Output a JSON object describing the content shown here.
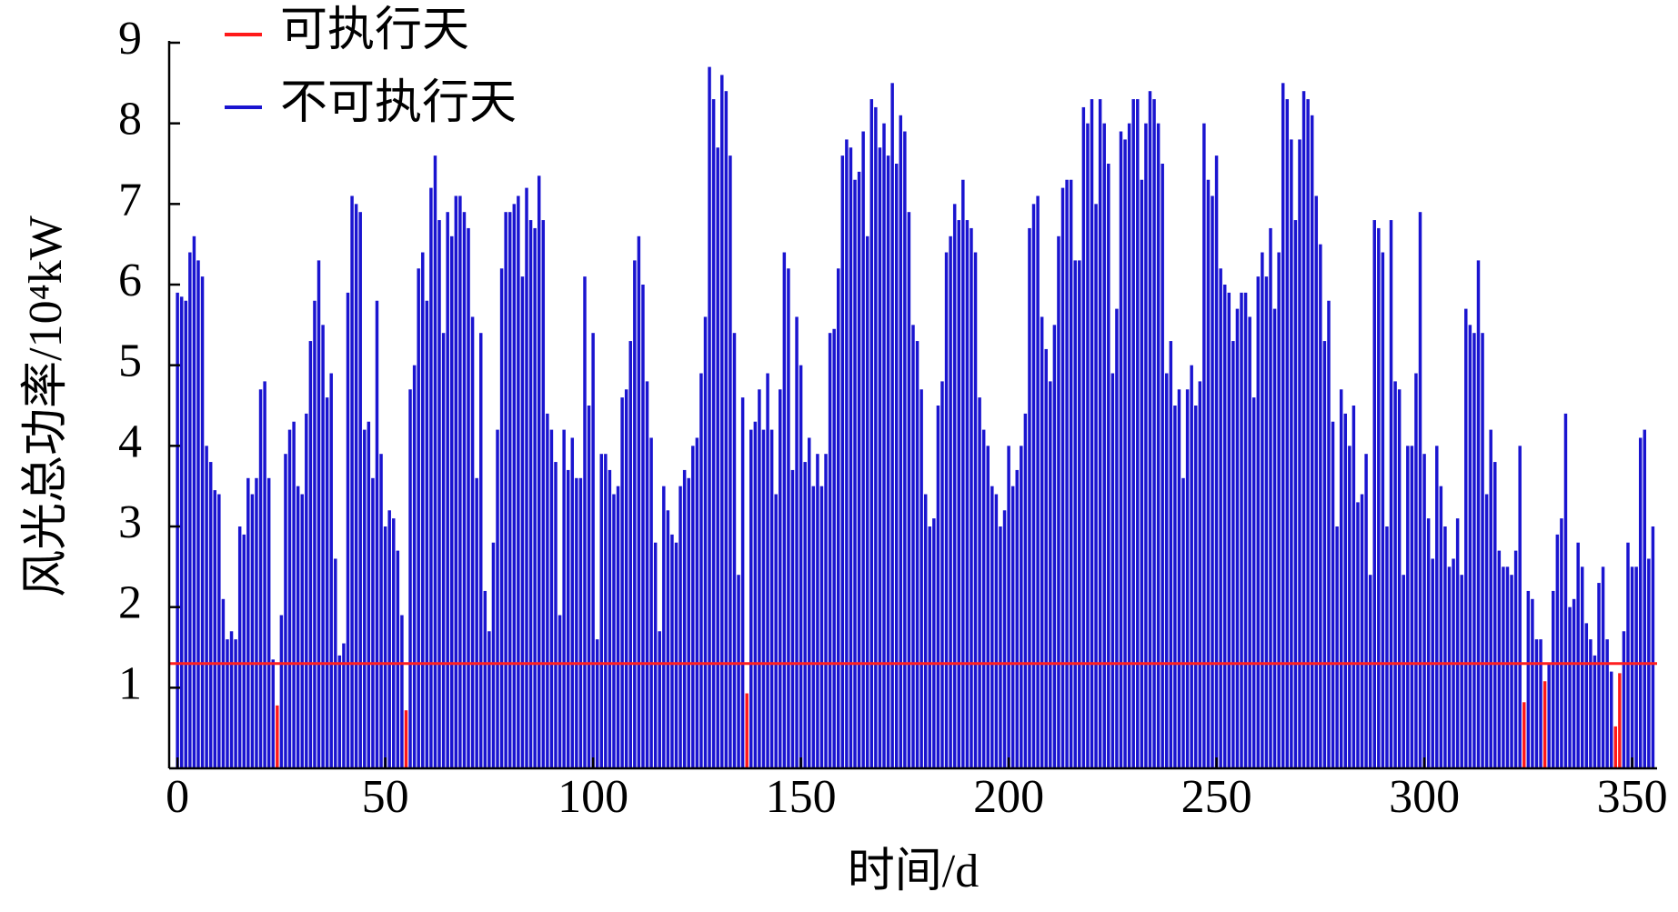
{
  "chart_data": {
    "type": "bar",
    "x_label": "时间/d",
    "y_label": "风光总功率/10⁴kW",
    "xlim": [
      -2,
      356
    ],
    "xticks": [
      0,
      50,
      100,
      150,
      200,
      250,
      300,
      350
    ],
    "ylim": [
      0,
      9
    ],
    "yticks": [
      1,
      2,
      3,
      4,
      5,
      6,
      7,
      8,
      9
    ],
    "threshold": 1.3,
    "threshold_color": "#ff2020",
    "legend": "upper left",
    "series": [
      {
        "name": "可执行天",
        "color": "#ff1a1a",
        "x": [
          24,
          55,
          137,
          324,
          329,
          346,
          347
        ],
        "values": [
          0.78,
          0.72,
          0.93,
          0.82,
          1.08,
          0.52,
          1.18
        ]
      },
      {
        "name": "不可执行天",
        "color": "#1a14d0",
        "x": [
          0,
          1,
          2,
          3,
          4,
          5,
          6,
          7,
          8,
          9,
          10,
          11,
          12,
          13,
          14,
          15,
          16,
          17,
          18,
          19,
          20,
          21,
          22,
          23,
          25,
          26,
          27,
          28,
          29,
          30,
          31,
          32,
          33,
          34,
          35,
          36,
          37,
          38,
          39,
          40,
          41,
          42,
          43,
          44,
          45,
          46,
          47,
          48,
          49,
          50,
          51,
          52,
          53,
          54,
          56,
          57,
          58,
          59,
          60,
          61,
          62,
          63,
          64,
          65,
          66,
          67,
          68,
          69,
          70,
          71,
          72,
          73,
          74,
          75,
          76,
          77,
          78,
          79,
          80,
          81,
          82,
          83,
          84,
          85,
          86,
          87,
          88,
          89,
          90,
          91,
          92,
          93,
          94,
          95,
          96,
          97,
          98,
          99,
          100,
          101,
          102,
          103,
          104,
          105,
          106,
          107,
          108,
          109,
          110,
          111,
          112,
          113,
          114,
          115,
          116,
          117,
          118,
          119,
          120,
          121,
          122,
          123,
          124,
          125,
          126,
          127,
          128,
          129,
          130,
          131,
          132,
          133,
          134,
          135,
          136,
          138,
          139,
          140,
          141,
          142,
          143,
          144,
          145,
          146,
          147,
          148,
          149,
          150,
          151,
          152,
          153,
          154,
          155,
          156,
          157,
          158,
          159,
          160,
          161,
          162,
          163,
          164,
          165,
          166,
          167,
          168,
          169,
          170,
          171,
          172,
          173,
          174,
          175,
          176,
          177,
          178,
          179,
          180,
          181,
          182,
          183,
          184,
          185,
          186,
          187,
          188,
          189,
          190,
          191,
          192,
          193,
          194,
          195,
          196,
          197,
          198,
          199,
          200,
          201,
          202,
          203,
          204,
          205,
          206,
          207,
          208,
          209,
          210,
          211,
          212,
          213,
          214,
          215,
          216,
          217,
          218,
          219,
          220,
          221,
          222,
          223,
          224,
          225,
          226,
          227,
          228,
          229,
          230,
          231,
          232,
          233,
          234,
          235,
          236,
          237,
          238,
          239,
          240,
          241,
          242,
          243,
          244,
          245,
          246,
          247,
          248,
          249,
          250,
          251,
          252,
          253,
          254,
          255,
          256,
          257,
          258,
          259,
          260,
          261,
          262,
          263,
          264,
          265,
          266,
          267,
          268,
          269,
          270,
          271,
          272,
          273,
          274,
          275,
          276,
          277,
          278,
          279,
          280,
          281,
          282,
          283,
          284,
          285,
          286,
          287,
          288,
          289,
          290,
          291,
          292,
          293,
          294,
          295,
          296,
          297,
          298,
          299,
          300,
          301,
          302,
          303,
          304,
          305,
          306,
          307,
          308,
          309,
          310,
          311,
          312,
          313,
          314,
          315,
          316,
          317,
          318,
          319,
          320,
          321,
          322,
          323,
          325,
          326,
          327,
          328,
          330,
          331,
          332,
          333,
          334,
          335,
          336,
          337,
          338,
          339,
          340,
          341,
          342,
          343,
          344,
          345,
          348,
          349,
          350,
          351,
          352,
          353,
          354,
          355
        ],
        "values": [
          5.9,
          5.85,
          5.8,
          6.4,
          6.6,
          6.3,
          6.1,
          4.0,
          3.8,
          3.45,
          3.4,
          2.1,
          1.6,
          1.7,
          1.6,
          3.0,
          2.9,
          3.6,
          3.4,
          3.6,
          4.7,
          4.8,
          3.6,
          1.35,
          1.9,
          3.9,
          4.2,
          4.3,
          3.5,
          3.4,
          4.4,
          5.3,
          5.8,
          6.3,
          5.5,
          4.6,
          4.9,
          2.6,
          1.4,
          1.55,
          5.9,
          7.1,
          7.0,
          6.9,
          4.2,
          4.3,
          3.6,
          5.8,
          3.9,
          3.0,
          3.2,
          3.1,
          2.7,
          1.9,
          4.7,
          5.0,
          6.2,
          6.4,
          5.8,
          7.2,
          7.6,
          6.8,
          5.4,
          6.9,
          6.6,
          7.1,
          7.1,
          6.9,
          6.7,
          5.6,
          3.6,
          5.4,
          2.2,
          1.7,
          2.8,
          4.2,
          6.2,
          6.9,
          6.9,
          7.0,
          7.1,
          6.1,
          7.2,
          6.8,
          6.7,
          7.35,
          6.8,
          4.4,
          4.2,
          3.8,
          1.9,
          4.2,
          3.7,
          4.1,
          3.6,
          3.6,
          6.1,
          4.5,
          5.4,
          1.6,
          3.9,
          3.9,
          3.7,
          3.4,
          3.5,
          4.6,
          4.7,
          5.3,
          6.3,
          6.6,
          6.0,
          4.8,
          4.1,
          2.8,
          1.7,
          3.5,
          3.2,
          2.9,
          2.8,
          3.5,
          3.7,
          3.6,
          4.0,
          4.1,
          4.9,
          5.6,
          8.7,
          8.3,
          7.7,
          8.6,
          8.4,
          7.6,
          5.4,
          2.4,
          4.6,
          4.2,
          4.3,
          4.7,
          4.2,
          4.9,
          4.2,
          3.4,
          4.7,
          6.4,
          6.2,
          3.7,
          5.6,
          5.0,
          3.8,
          4.1,
          3.5,
          3.9,
          3.5,
          3.9,
          5.4,
          5.45,
          6.2,
          7.6,
          7.8,
          7.7,
          7.3,
          7.4,
          7.9,
          6.6,
          8.3,
          8.2,
          7.7,
          8.0,
          7.6,
          8.5,
          7.5,
          8.1,
          7.9,
          6.9,
          5.5,
          5.3,
          4.7,
          3.4,
          3.0,
          3.1,
          4.5,
          4.8,
          6.4,
          6.6,
          7.0,
          6.8,
          7.3,
          6.8,
          6.7,
          6.4,
          4.6,
          4.2,
          4.0,
          3.5,
          3.4,
          3.0,
          3.2,
          4.0,
          3.5,
          3.7,
          4.0,
          4.4,
          6.7,
          7.0,
          7.1,
          5.6,
          5.2,
          4.8,
          5.5,
          6.6,
          7.2,
          7.3,
          7.3,
          6.3,
          6.3,
          8.2,
          8.0,
          8.3,
          7.0,
          8.3,
          8.0,
          7.5,
          4.9,
          5.7,
          7.9,
          7.8,
          8.0,
          8.3,
          8.3,
          7.3,
          8.0,
          8.4,
          8.3,
          8.0,
          7.5,
          4.9,
          5.3,
          4.5,
          4.7,
          3.6,
          4.7,
          5.0,
          4.5,
          4.8,
          8.0,
          7.3,
          7.1,
          7.6,
          6.2,
          6.0,
          5.9,
          5.3,
          5.7,
          5.9,
          5.9,
          5.6,
          4.6,
          6.1,
          6.4,
          6.1,
          6.7,
          5.7,
          6.4,
          8.5,
          8.3,
          7.8,
          6.8,
          7.8,
          8.4,
          8.3,
          8.1,
          7.1,
          6.5,
          5.3,
          5.8,
          4.3,
          3.0,
          4.7,
          4.4,
          4.0,
          4.5,
          3.3,
          3.4,
          3.9,
          2.4,
          6.8,
          6.7,
          6.4,
          3.0,
          6.8,
          4.8,
          4.7,
          2.4,
          4.0,
          4.0,
          4.9,
          6.9,
          3.9,
          3.1,
          2.6,
          4.0,
          3.5,
          3.0,
          2.5,
          2.6,
          3.1,
          2.4,
          5.7,
          5.5,
          5.4,
          6.3,
          5.4,
          3.4,
          4.2,
          3.8,
          2.7,
          2.5,
          2.5,
          2.4,
          2.7,
          4.0,
          2.2,
          2.1,
          1.6,
          1.6,
          1.3,
          2.2,
          2.9,
          3.1,
          4.4,
          2.0,
          2.1,
          2.8,
          2.5,
          1.8,
          1.6,
          1.4,
          2.3,
          2.5,
          1.6,
          1.2,
          1.7,
          2.8,
          2.5,
          2.5,
          4.1,
          4.2,
          2.6,
          3.0
        ]
      }
    ]
  }
}
